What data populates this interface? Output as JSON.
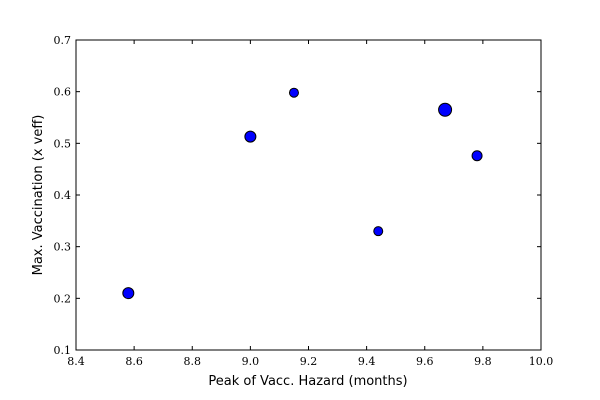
{
  "chart_data": {
    "type": "scatter",
    "title": "",
    "xlabel": "Peak of Vacc. Hazard (months)",
    "ylabel": "Max. Vaccination (x veff)",
    "xlim": [
      8.4,
      10.0
    ],
    "ylim": [
      0.1,
      0.7
    ],
    "xticks": [
      "8.4",
      "8.6",
      "8.8",
      "9.0",
      "9.2",
      "9.4",
      "9.6",
      "9.8",
      "10.0"
    ],
    "yticks": [
      "0.1",
      "0.2",
      "0.3",
      "0.4",
      "0.5",
      "0.6",
      "0.7"
    ],
    "grid": false,
    "legend": "none",
    "marker_color": "#0000ff",
    "marker_edge_color": "#000000",
    "points": [
      {
        "x": 8.58,
        "y": 0.21,
        "size": "medium"
      },
      {
        "x": 9.0,
        "y": 0.513,
        "size": "medium"
      },
      {
        "x": 9.15,
        "y": 0.598,
        "size": "small"
      },
      {
        "x": 9.44,
        "y": 0.33,
        "size": "small"
      },
      {
        "x": 9.67,
        "y": 0.565,
        "size": "large"
      },
      {
        "x": 9.78,
        "y": 0.476,
        "size": "small-medium"
      }
    ]
  }
}
